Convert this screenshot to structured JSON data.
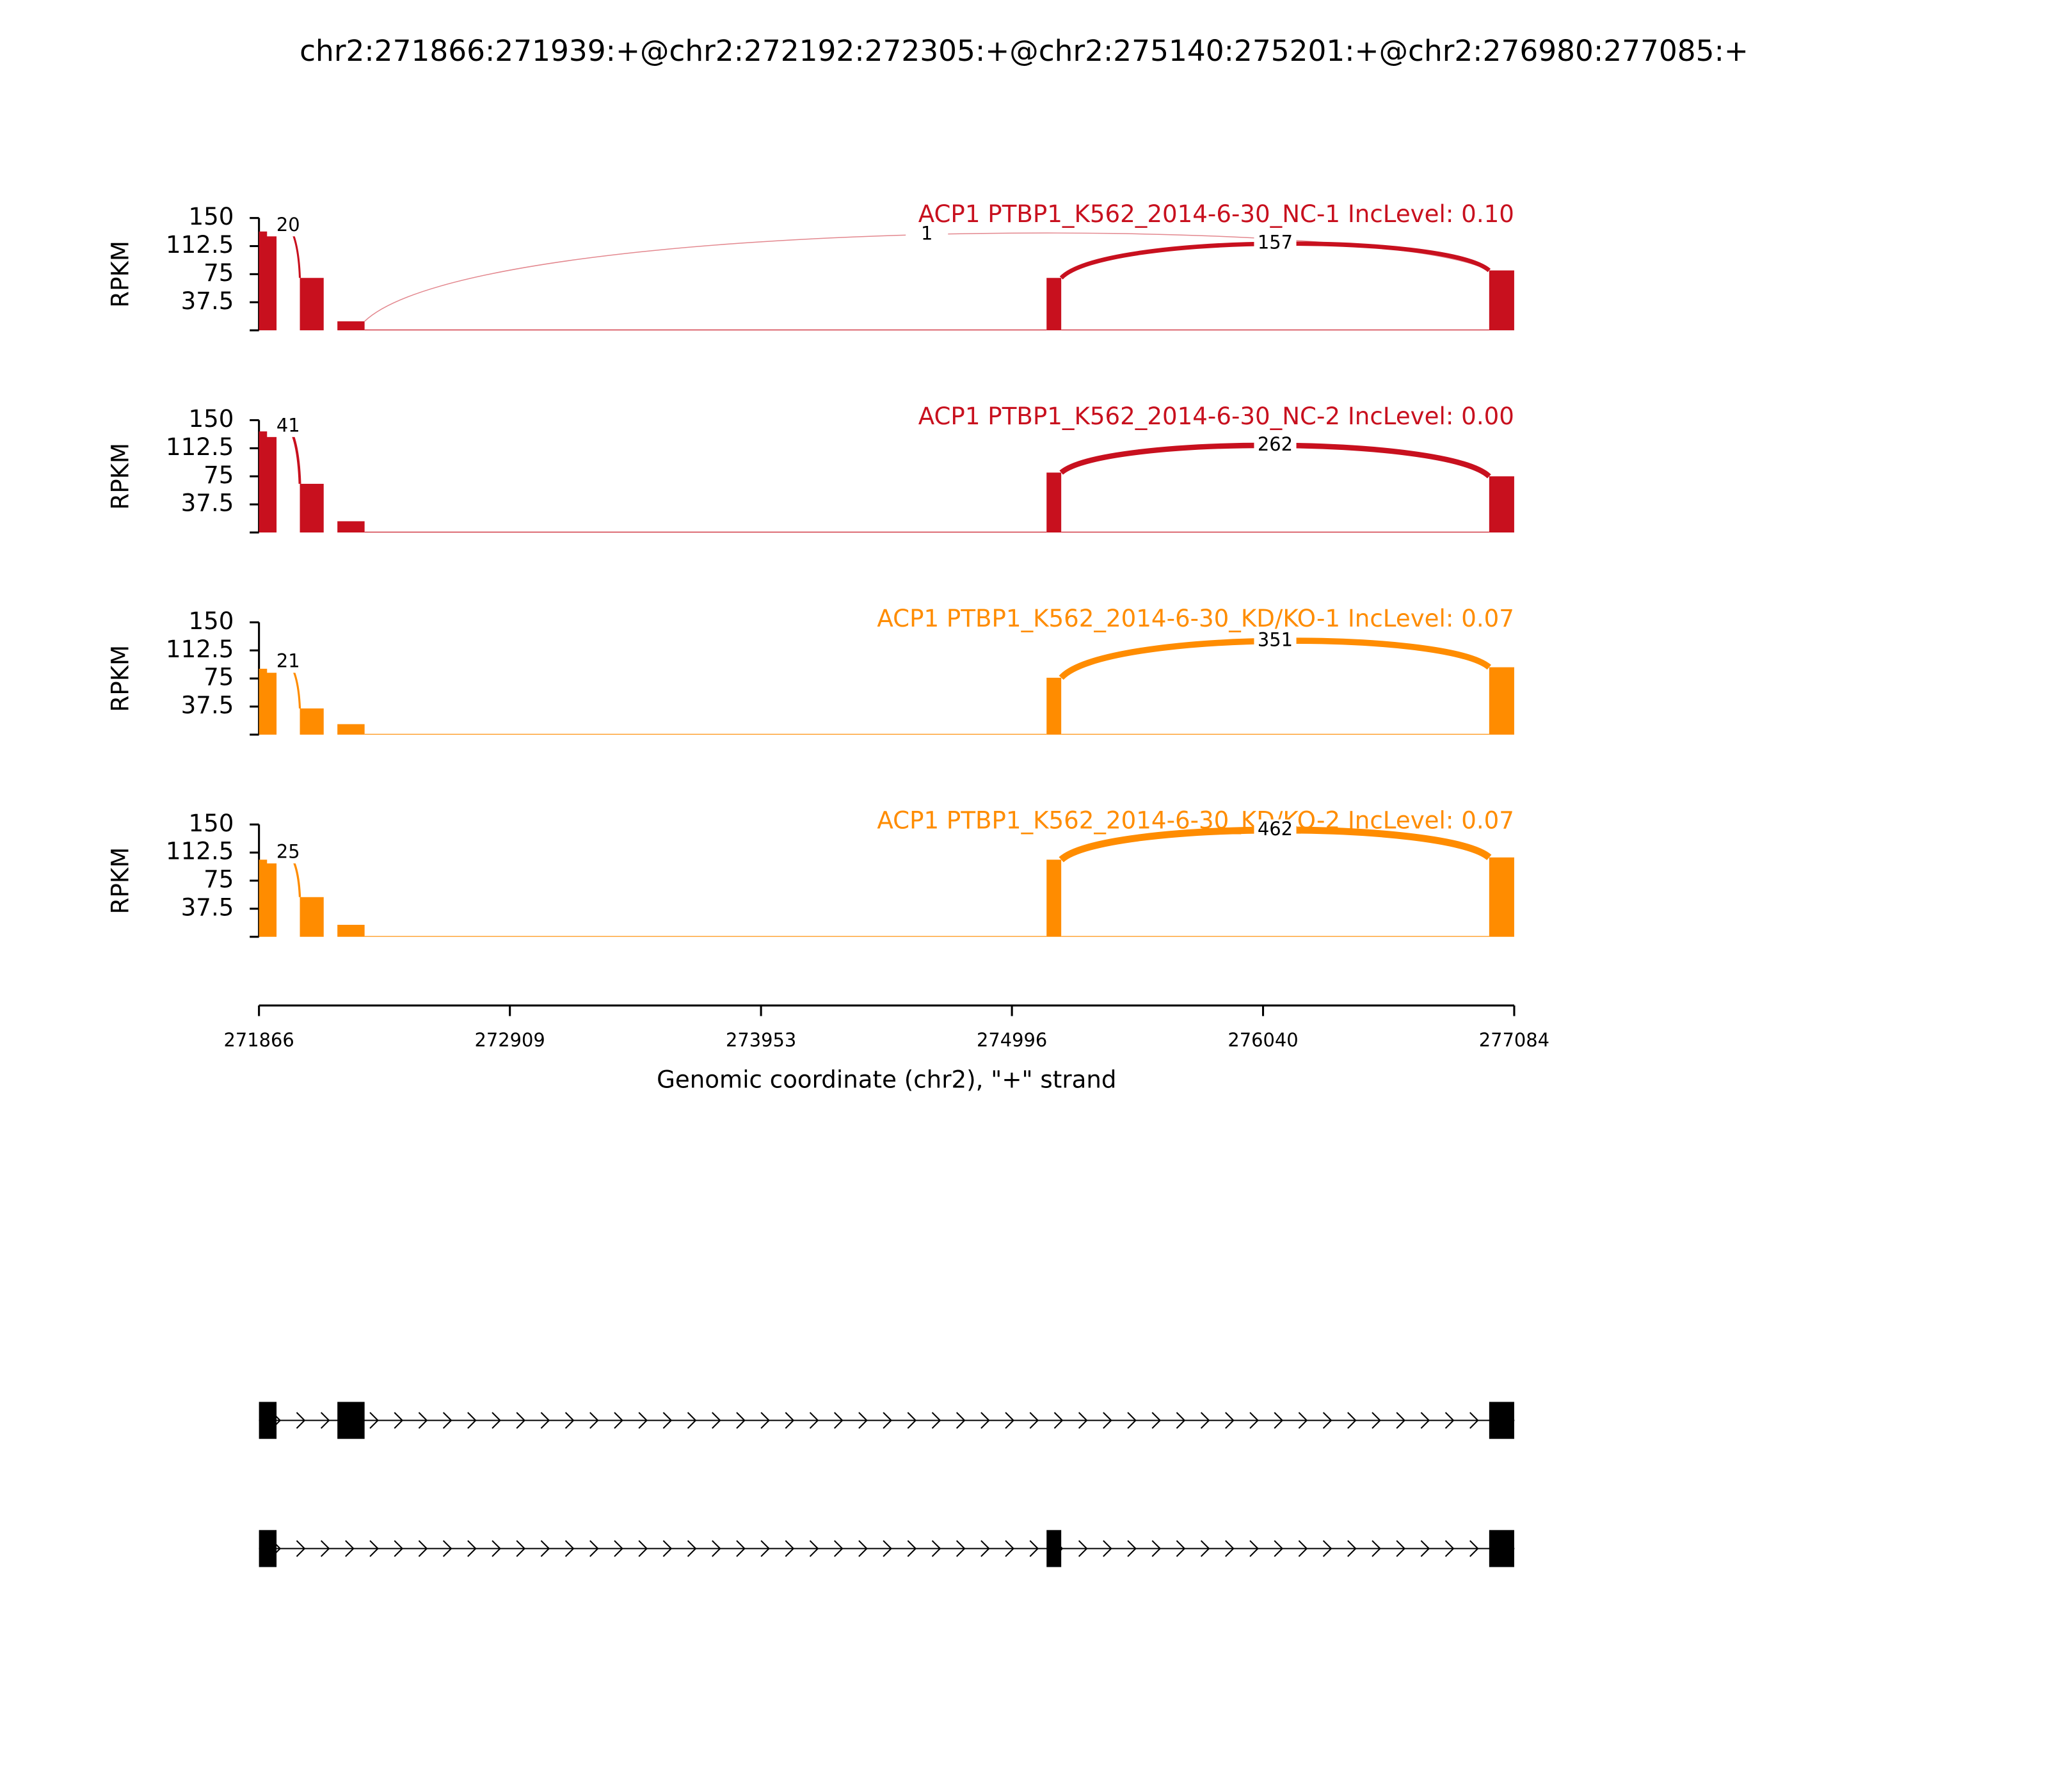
{
  "chart_data": {
    "type": "sashimi",
    "title": "chr2:271866:271939:+@chr2:272192:272305:+@chr2:275140:275201:+@chr2:276980:277085:+",
    "xlabel": "Genomic coordinate (chr2), \"+\" strand",
    "xlim": [
      271866,
      277084
    ],
    "xticks": [
      271866,
      272909,
      273953,
      274996,
      276040,
      277084
    ],
    "panels": [
      {
        "label": "ACP1 PTBP1_K562_2014-6-30_NC-1 IncLevel: 0.10",
        "color": "#c8101e",
        "ylabel": "RPKM",
        "ylim": [
          0,
          150
        ],
        "yticks": [
          37.5,
          75,
          112.5,
          150
        ],
        "coverage": [
          {
            "start": 271866,
            "end": 271939,
            "value": 132
          },
          {
            "start": 272036,
            "end": 272135,
            "value": 70
          },
          {
            "start": 272192,
            "end": 272305,
            "value": 12
          },
          {
            "start": 272305,
            "end": 275140,
            "value": 1
          },
          {
            "start": 275140,
            "end": 275201,
            "value": 70
          },
          {
            "start": 275201,
            "end": 276980,
            "value": 1
          },
          {
            "start": 276980,
            "end": 277084,
            "value": 80
          }
        ],
        "junctions": [
          {
            "start": 271939,
            "end": 272036,
            "count": 20
          },
          {
            "start": 272305,
            "end": 276980,
            "count": 1
          },
          {
            "start": 275201,
            "end": 276980,
            "count": 157
          }
        ]
      },
      {
        "label": "ACP1 PTBP1_K562_2014-6-30_NC-2 IncLevel: 0.00",
        "color": "#c8101e",
        "ylabel": "RPKM",
        "ylim": [
          0,
          150
        ],
        "yticks": [
          37.5,
          75,
          112.5,
          150
        ],
        "coverage": [
          {
            "start": 271866,
            "end": 271939,
            "value": 135
          },
          {
            "start": 272036,
            "end": 272135,
            "value": 65
          },
          {
            "start": 272192,
            "end": 272305,
            "value": 15
          },
          {
            "start": 272305,
            "end": 275140,
            "value": 1
          },
          {
            "start": 275140,
            "end": 275201,
            "value": 80
          },
          {
            "start": 275201,
            "end": 276980,
            "value": 1
          },
          {
            "start": 276980,
            "end": 277084,
            "value": 75
          }
        ],
        "junctions": [
          {
            "start": 271939,
            "end": 272036,
            "count": 41
          },
          {
            "start": 275201,
            "end": 276980,
            "count": 262
          }
        ]
      },
      {
        "label": "ACP1 PTBP1_K562_2014-6-30_KD/KO-1 IncLevel: 0.07",
        "color": "#ff8c00",
        "ylabel": "RPKM",
        "ylim": [
          0,
          150
        ],
        "yticks": [
          37.5,
          75,
          112.5,
          150
        ],
        "coverage": [
          {
            "start": 271866,
            "end": 271939,
            "value": 88
          },
          {
            "start": 272036,
            "end": 272135,
            "value": 35
          },
          {
            "start": 272192,
            "end": 272305,
            "value": 14
          },
          {
            "start": 272305,
            "end": 275140,
            "value": 1
          },
          {
            "start": 275140,
            "end": 275201,
            "value": 76
          },
          {
            "start": 275201,
            "end": 276980,
            "value": 1
          },
          {
            "start": 276980,
            "end": 277084,
            "value": 90
          }
        ],
        "junctions": [
          {
            "start": 271939,
            "end": 272036,
            "count": 21
          },
          {
            "start": 275201,
            "end": 276980,
            "count": 351
          }
        ]
      },
      {
        "label": "ACP1 PTBP1_K562_2014-6-30_KD/KO-2 IncLevel: 0.07",
        "color": "#ff8c00",
        "ylabel": "RPKM",
        "ylim": [
          0,
          150
        ],
        "yticks": [
          37.5,
          75,
          112.5,
          150
        ],
        "coverage": [
          {
            "start": 271866,
            "end": 271939,
            "value": 103
          },
          {
            "start": 272036,
            "end": 272135,
            "value": 53
          },
          {
            "start": 272192,
            "end": 272305,
            "value": 16
          },
          {
            "start": 272305,
            "end": 275140,
            "value": 1
          },
          {
            "start": 275140,
            "end": 275201,
            "value": 103
          },
          {
            "start": 275201,
            "end": 276980,
            "value": 1
          },
          {
            "start": 276980,
            "end": 277084,
            "value": 106
          }
        ],
        "junctions": [
          {
            "start": 271939,
            "end": 272036,
            "count": 25
          },
          {
            "start": 275201,
            "end": 276980,
            "count": 462
          }
        ]
      }
    ],
    "transcripts": [
      {
        "exons": [
          [
            271866,
            271939
          ],
          [
            272192,
            272305
          ],
          [
            276980,
            277085
          ]
        ]
      },
      {
        "exons": [
          [
            271866,
            271939
          ],
          [
            275140,
            275201
          ],
          [
            276980,
            277085
          ]
        ]
      }
    ]
  }
}
